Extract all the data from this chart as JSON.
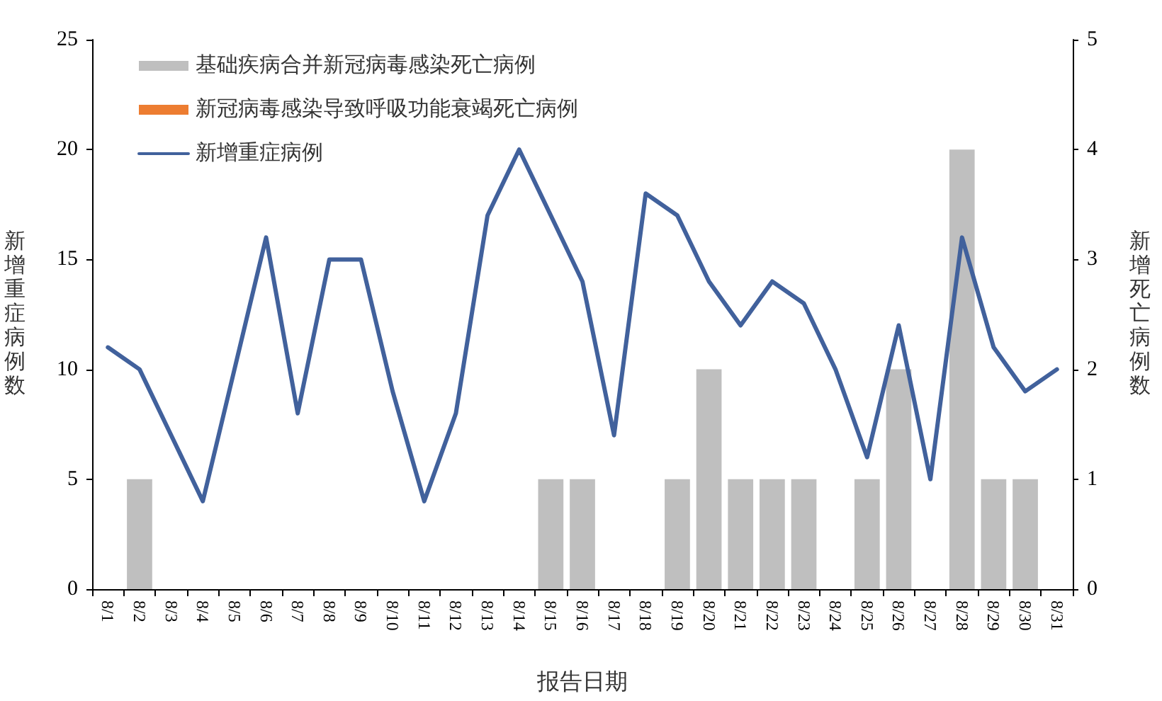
{
  "chart_data": {
    "type": "bar",
    "xlabel": "报告日期",
    "ylabel": "新增重症病例数",
    "y2label": "新增死亡病例数",
    "categories": [
      "8/1",
      "8/2",
      "8/3",
      "8/4",
      "8/5",
      "8/6",
      "8/7",
      "8/8",
      "8/9",
      "8/10",
      "8/11",
      "8/12",
      "8/13",
      "8/14",
      "8/15",
      "8/16",
      "8/17",
      "8/18",
      "8/19",
      "8/20",
      "8/21",
      "8/22",
      "8/23",
      "8/24",
      "8/25",
      "8/26",
      "8/27",
      "8/28",
      "8/29",
      "8/30",
      "8/31"
    ],
    "series": [
      {
        "name": "基础疾病合并新冠病毒感染死亡病例",
        "axis": "y2",
        "color": "#bfbfbf",
        "values": [
          null,
          1,
          null,
          null,
          null,
          null,
          null,
          null,
          null,
          null,
          null,
          null,
          null,
          null,
          1,
          1,
          null,
          null,
          1,
          2,
          1,
          1,
          1,
          null,
          1,
          2,
          null,
          4,
          1,
          1,
          null
        ]
      },
      {
        "name": "新冠病毒感染导致呼吸功能衰竭死亡病例",
        "axis": "y2",
        "color": "#ed7d31",
        "values": [
          null,
          null,
          null,
          null,
          null,
          null,
          null,
          null,
          null,
          null,
          null,
          null,
          null,
          null,
          null,
          null,
          null,
          null,
          null,
          null,
          null,
          null,
          null,
          null,
          null,
          null,
          null,
          null,
          null,
          null,
          null
        ]
      },
      {
        "name": "新增重症病例",
        "type": "line",
        "color": "#41619c",
        "values": [
          11,
          10,
          7,
          4,
          10,
          16,
          8,
          15,
          15,
          9,
          4,
          8,
          17,
          20,
          17,
          14,
          7,
          18,
          17,
          14,
          12,
          14,
          13,
          10,
          6,
          12,
          5,
          16,
          11,
          9,
          10
        ]
      }
    ],
    "ylim": [
      0,
      25
    ],
    "yticks": [
      0,
      5,
      10,
      15,
      20,
      25
    ],
    "y2lim": [
      0,
      5
    ],
    "y2ticks": [
      0,
      1,
      2,
      3,
      4,
      5
    ],
    "stacked": true,
    "grid": false,
    "legend": "top left",
    "marker": "none",
    "line_style": "solid"
  }
}
